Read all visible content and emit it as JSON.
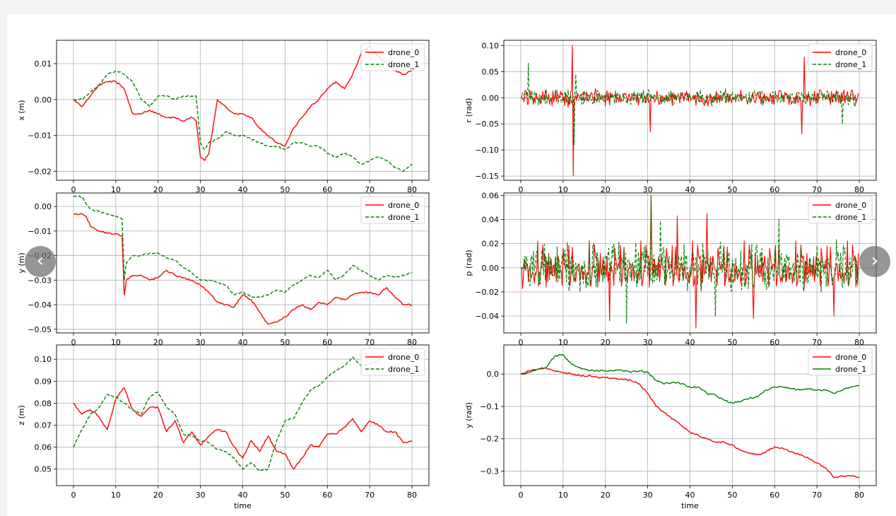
{
  "nav": {
    "prev_icon": "‹",
    "next_icon": "›"
  },
  "colors": {
    "drone_0": "#ff0000",
    "drone_1": "#008000"
  },
  "chart_data": [
    {
      "type": "line",
      "panel": "x",
      "xlabel": "time",
      "ylabel": "x (m)",
      "xlim": [
        -4,
        84
      ],
      "ylim": [
        -0.0225,
        0.0165
      ],
      "xticks": [
        0,
        10,
        20,
        30,
        40,
        50,
        60,
        70,
        80
      ],
      "yticks": [
        -0.02,
        -0.01,
        0.0,
        0.01
      ],
      "ytick_labels": [
        "−0.02",
        "−0.01",
        "0.00",
        "0.01"
      ],
      "grid": true,
      "legend": "top-right",
      "series": [
        {
          "name": "drone_0",
          "style": "solid",
          "x": [
            0,
            2,
            4,
            6,
            8,
            10,
            12,
            14,
            16,
            18,
            20,
            22,
            24,
            26,
            28,
            29,
            30,
            31,
            32,
            34,
            36,
            38,
            40,
            42,
            44,
            46,
            48,
            50,
            52,
            54,
            56,
            58,
            60,
            62,
            64,
            66,
            68,
            70,
            72,
            74,
            76,
            78,
            80
          ],
          "y": [
            0.0,
            -0.002,
            0.001,
            0.004,
            0.005,
            0.005,
            0.003,
            -0.004,
            -0.004,
            -0.003,
            -0.004,
            -0.005,
            -0.005,
            -0.006,
            -0.005,
            -0.006,
            -0.016,
            -0.017,
            -0.015,
            -0.0,
            -0.002,
            -0.004,
            -0.004,
            -0.005,
            -0.008,
            -0.01,
            -0.012,
            -0.013,
            -0.008,
            -0.005,
            -0.002,
            0.0,
            0.003,
            0.005,
            0.003,
            0.007,
            0.013,
            0.015,
            0.012,
            0.01,
            0.008,
            0.007,
            0.008
          ]
        },
        {
          "name": "drone_1",
          "style": "dashed",
          "x": [
            0,
            2,
            4,
            6,
            8,
            10,
            12,
            14,
            16,
            18,
            20,
            22,
            24,
            26,
            28,
            29,
            30,
            31,
            32,
            34,
            36,
            38,
            40,
            42,
            44,
            46,
            48,
            50,
            52,
            54,
            56,
            58,
            60,
            62,
            64,
            66,
            68,
            70,
            72,
            74,
            76,
            78,
            80
          ],
          "y": [
            0.0,
            0.0,
            0.002,
            0.004,
            0.007,
            0.008,
            0.007,
            0.005,
            0.0,
            -0.002,
            0.001,
            0.001,
            0.0,
            0.001,
            0.001,
            0.001,
            -0.012,
            -0.014,
            -0.012,
            -0.011,
            -0.009,
            -0.01,
            -0.01,
            -0.011,
            -0.012,
            -0.013,
            -0.013,
            -0.014,
            -0.012,
            -0.012,
            -0.013,
            -0.013,
            -0.015,
            -0.016,
            -0.015,
            -0.016,
            -0.018,
            -0.017,
            -0.016,
            -0.017,
            -0.019,
            -0.02,
            -0.018
          ]
        }
      ]
    },
    {
      "type": "line",
      "panel": "r",
      "xlabel": "time",
      "ylabel": "r (rad)",
      "xlim": [
        -4,
        84
      ],
      "ylim": [
        -0.158,
        0.11
      ],
      "xticks": [
        0,
        10,
        20,
        30,
        40,
        50,
        60,
        70,
        80
      ],
      "yticks": [
        -0.15,
        -0.1,
        -0.05,
        0.0,
        0.05,
        0.1
      ],
      "ytick_labels": [
        "−0.15",
        "−0.10",
        "−0.05",
        "0.00",
        "0.05",
        "0.10"
      ],
      "grid": true,
      "legend": "top-right",
      "noise": {
        "amplitude": 0.018
      },
      "series": [
        {
          "name": "drone_0",
          "style": "solid",
          "spikes": [
            [
              12.2,
              0.1
            ],
            [
              12.4,
              -0.15
            ],
            [
              30.5,
              -0.065
            ],
            [
              67,
              0.078
            ],
            [
              66.5,
              -0.069
            ]
          ]
        },
        {
          "name": "drone_1",
          "style": "dashed",
          "spikes": [
            [
              1.8,
              0.066
            ],
            [
              12.6,
              -0.09
            ],
            [
              13,
              0.045
            ],
            [
              76,
              -0.05
            ]
          ]
        }
      ]
    },
    {
      "type": "line",
      "panel": "y",
      "xlabel": "time",
      "ylabel": "y (m)",
      "xlim": [
        -4,
        84
      ],
      "ylim": [
        -0.0515,
        0.0055
      ],
      "xticks": [
        0,
        10,
        20,
        30,
        40,
        50,
        60,
        70,
        80
      ],
      "yticks": [
        -0.05,
        -0.04,
        -0.03,
        -0.02,
        -0.01,
        0.0
      ],
      "ytick_labels": [
        "−0.05",
        "−0.04",
        "−0.03",
        "−0.02",
        "−0.01",
        "0.00"
      ],
      "grid": true,
      "legend": "top-right",
      "series": [
        {
          "name": "drone_0",
          "style": "solid",
          "x": [
            0,
            2,
            3,
            4,
            6,
            8,
            10,
            11.5,
            12,
            12.5,
            14,
            16,
            18,
            20,
            22,
            24,
            26,
            28,
            30,
            32,
            34,
            36,
            38,
            40,
            42,
            44,
            46,
            48,
            50,
            52,
            54,
            56,
            58,
            60,
            62,
            64,
            66,
            68,
            70,
            72,
            74,
            76,
            78,
            80
          ],
          "y": [
            -0.003,
            -0.003,
            -0.004,
            -0.008,
            -0.01,
            -0.011,
            -0.011,
            -0.012,
            -0.036,
            -0.03,
            -0.028,
            -0.028,
            -0.03,
            -0.029,
            -0.026,
            -0.028,
            -0.029,
            -0.03,
            -0.032,
            -0.035,
            -0.039,
            -0.04,
            -0.041,
            -0.036,
            -0.038,
            -0.043,
            -0.048,
            -0.047,
            -0.045,
            -0.042,
            -0.04,
            -0.042,
            -0.039,
            -0.04,
            -0.037,
            -0.038,
            -0.036,
            -0.035,
            -0.035,
            -0.036,
            -0.033,
            -0.037,
            -0.04,
            -0.04
          ]
        },
        {
          "name": "drone_1",
          "style": "dashed",
          "x": [
            0,
            2,
            3,
            4,
            6,
            8,
            10,
            11.5,
            12,
            12.5,
            14,
            16,
            18,
            20,
            22,
            24,
            26,
            28,
            30,
            32,
            34,
            36,
            38,
            40,
            42,
            44,
            46,
            48,
            50,
            52,
            54,
            56,
            58,
            60,
            62,
            64,
            66,
            68,
            70,
            72,
            74,
            76,
            78,
            80
          ],
          "y": [
            0.004,
            0.004,
            0.001,
            -0.001,
            -0.002,
            -0.003,
            -0.004,
            -0.005,
            -0.03,
            -0.023,
            -0.02,
            -0.02,
            -0.019,
            -0.019,
            -0.021,
            -0.022,
            -0.025,
            -0.027,
            -0.03,
            -0.03,
            -0.031,
            -0.032,
            -0.036,
            -0.035,
            -0.037,
            -0.037,
            -0.036,
            -0.034,
            -0.035,
            -0.032,
            -0.03,
            -0.028,
            -0.029,
            -0.026,
            -0.03,
            -0.028,
            -0.024,
            -0.026,
            -0.028,
            -0.03,
            -0.028,
            -0.029,
            -0.028,
            -0.027
          ]
        }
      ]
    },
    {
      "type": "line",
      "panel": "p",
      "xlabel": "time",
      "ylabel": "p (rad)",
      "xlim": [
        -4,
        84
      ],
      "ylim": [
        -0.054,
        0.062
      ],
      "xticks": [
        0,
        10,
        20,
        30,
        40,
        50,
        60,
        70,
        80
      ],
      "yticks": [
        -0.04,
        -0.02,
        0.0,
        0.02,
        0.04,
        0.06
      ],
      "ytick_labels": [
        "−0.04",
        "−0.02",
        "0.00",
        "0.02",
        "0.04",
        "0.06"
      ],
      "grid": true,
      "legend": "top-right",
      "noise": {
        "amplitude": 0.025
      },
      "series": [
        {
          "name": "drone_0",
          "style": "solid",
          "spikes": [
            [
              21,
              -0.044
            ],
            [
              30.8,
              0.06
            ],
            [
              37,
              0.043
            ],
            [
              41.5,
              -0.05
            ],
            [
              44,
              0.045
            ],
            [
              55,
              -0.042
            ],
            [
              74,
              -0.04
            ]
          ]
        },
        {
          "name": "drone_1",
          "style": "dashed",
          "spikes": [
            [
              30.8,
              0.06
            ],
            [
              25,
              -0.046
            ],
            [
              33,
              0.039
            ],
            [
              46,
              -0.04
            ],
            [
              61,
              0.04
            ]
          ]
        }
      ]
    },
    {
      "type": "line",
      "panel": "z",
      "xlabel": "time",
      "ylabel": "z (m)",
      "xlim": [
        -4,
        84
      ],
      "ylim": [
        0.0425,
        0.1065
      ],
      "xticks": [
        0,
        10,
        20,
        30,
        40,
        50,
        60,
        70,
        80
      ],
      "yticks": [
        0.05,
        0.06,
        0.07,
        0.08,
        0.09,
        0.1
      ],
      "ytick_labels": [
        "0.05",
        "0.06",
        "0.07",
        "0.08",
        "0.09",
        "0.10"
      ],
      "grid": true,
      "legend": "top-right",
      "series": [
        {
          "name": "drone_0",
          "style": "solid",
          "x": [
            0,
            2,
            4,
            6,
            8,
            10,
            12,
            14,
            16,
            18,
            20,
            22,
            24,
            26,
            28,
            30,
            32,
            34,
            36,
            38,
            40,
            42,
            44,
            46,
            48,
            50,
            52,
            54,
            56,
            58,
            60,
            62,
            64,
            66,
            68,
            70,
            72,
            74,
            76,
            78,
            80
          ],
          "y": [
            0.08,
            0.075,
            0.077,
            0.074,
            0.068,
            0.082,
            0.087,
            0.077,
            0.074,
            0.078,
            0.078,
            0.067,
            0.072,
            0.062,
            0.067,
            0.061,
            0.065,
            0.068,
            0.067,
            0.06,
            0.055,
            0.063,
            0.058,
            0.065,
            0.058,
            0.057,
            0.05,
            0.055,
            0.061,
            0.06,
            0.066,
            0.066,
            0.069,
            0.073,
            0.067,
            0.072,
            0.07,
            0.067,
            0.067,
            0.062,
            0.063
          ]
        },
        {
          "name": "drone_1",
          "style": "dashed",
          "x": [
            0,
            2,
            4,
            6,
            8,
            10,
            12,
            14,
            16,
            18,
            20,
            22,
            24,
            26,
            28,
            30,
            32,
            34,
            36,
            38,
            40,
            42,
            44,
            46,
            48,
            50,
            52,
            54,
            56,
            58,
            60,
            62,
            64,
            66,
            68,
            70,
            72,
            74,
            76,
            78,
            80
          ],
          "y": [
            0.06,
            0.068,
            0.075,
            0.078,
            0.084,
            0.083,
            0.08,
            0.077,
            0.075,
            0.083,
            0.085,
            0.078,
            0.075,
            0.066,
            0.065,
            0.063,
            0.062,
            0.059,
            0.058,
            0.055,
            0.05,
            0.053,
            0.049,
            0.05,
            0.063,
            0.072,
            0.073,
            0.08,
            0.086,
            0.088,
            0.092,
            0.095,
            0.097,
            0.101,
            0.097,
            0.098,
            0.099,
            0.104,
            0.1,
            0.1,
            0.101
          ]
        }
      ]
    },
    {
      "type": "line",
      "panel": "yaw",
      "xlabel": "time",
      "ylabel": "y (rad)",
      "xlim": [
        -4,
        84
      ],
      "ylim": [
        -0.345,
        0.09
      ],
      "xticks": [
        0,
        10,
        20,
        30,
        40,
        50,
        60,
        70,
        80
      ],
      "yticks": [
        -0.3,
        -0.2,
        -0.1,
        0.0
      ],
      "ytick_labels": [
        "−0.3",
        "−0.2",
        "−0.1",
        "0.0"
      ],
      "grid": true,
      "legend": "top-right",
      "series": [
        {
          "name": "drone_0",
          "style": "solid",
          "x": [
            0,
            2,
            4,
            6,
            8,
            10,
            12,
            14,
            16,
            18,
            20,
            22,
            24,
            26,
            28,
            30,
            32,
            34,
            36,
            38,
            40,
            42,
            44,
            46,
            48,
            50,
            52,
            54,
            56,
            58,
            60,
            62,
            64,
            66,
            68,
            70,
            72,
            74,
            76,
            78,
            80
          ],
          "y": [
            0.0,
            0.01,
            0.015,
            0.018,
            0.01,
            0.005,
            0.0,
            -0.005,
            -0.005,
            -0.01,
            -0.012,
            -0.012,
            -0.015,
            -0.02,
            -0.03,
            -0.06,
            -0.1,
            -0.12,
            -0.14,
            -0.16,
            -0.18,
            -0.19,
            -0.2,
            -0.21,
            -0.21,
            -0.22,
            -0.235,
            -0.245,
            -0.25,
            -0.24,
            -0.225,
            -0.23,
            -0.24,
            -0.25,
            -0.26,
            -0.275,
            -0.29,
            -0.32,
            -0.315,
            -0.315,
            -0.32
          ]
        },
        {
          "name": "drone_1",
          "style": "solid",
          "x": [
            0,
            2,
            4,
            6,
            8,
            10,
            12,
            14,
            16,
            18,
            20,
            22,
            24,
            26,
            28,
            30,
            32,
            34,
            36,
            38,
            40,
            42,
            44,
            46,
            48,
            50,
            52,
            54,
            56,
            58,
            60,
            62,
            64,
            66,
            68,
            70,
            72,
            74,
            76,
            78,
            80
          ],
          "y": [
            0.0,
            0.005,
            0.015,
            0.02,
            0.055,
            0.06,
            0.03,
            0.02,
            0.01,
            0.012,
            0.01,
            0.01,
            0.012,
            0.005,
            0.01,
            0.005,
            -0.02,
            -0.03,
            -0.025,
            -0.03,
            -0.04,
            -0.04,
            -0.06,
            -0.065,
            -0.08,
            -0.09,
            -0.085,
            -0.075,
            -0.07,
            -0.05,
            -0.04,
            -0.04,
            -0.045,
            -0.05,
            -0.045,
            -0.05,
            -0.05,
            -0.06,
            -0.05,
            -0.04,
            -0.035
          ]
        }
      ]
    }
  ]
}
